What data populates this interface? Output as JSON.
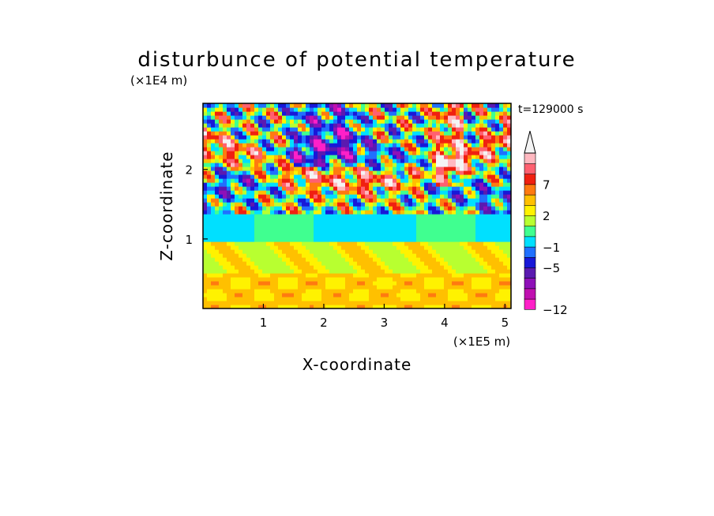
{
  "chart_data": {
    "type": "heatmap",
    "title": "disturbunce of potential temperature",
    "xlabel": "X-coordinate",
    "ylabel": "Z-coordinate",
    "x_unit": "(×1E5 m)",
    "y_unit": "(×1E4 m)",
    "time_label": "t=129000 s",
    "xlim": [
      0.0,
      5.1
    ],
    "ylim": [
      0.0,
      2.95
    ],
    "x_ticks": [
      1,
      2,
      3,
      4,
      5
    ],
    "y_ticks": [
      1,
      2
    ],
    "colorbar": {
      "levels": [
        -12,
        -11,
        -9,
        -7,
        -5,
        -3,
        -1,
        0,
        1,
        2,
        3,
        5,
        7,
        9,
        11
      ],
      "colors": [
        "#ff20c8",
        "#c010b0",
        "#8e10b8",
        "#5a1ab0",
        "#1818d8",
        "#2070ff",
        "#00e0ff",
        "#40ff90",
        "#b8ff30",
        "#fff200",
        "#ffc000",
        "#ff7a10",
        "#f02010",
        "#ff6070",
        "#ffb8c0",
        "#f4f4f4"
      ],
      "labels": [
        {
          "value": -12,
          "text": "-12"
        },
        {
          "value": -5,
          "text": "-5"
        },
        {
          "value": -1,
          "text": "-1"
        },
        {
          "value": 2,
          "text": "2"
        },
        {
          "value": 7,
          "text": "7"
        }
      ]
    },
    "field_description_bands": [
      {
        "z_range": [
          0.0,
          0.5
        ],
        "dominant": "yellow/orange (~1 to 3)"
      },
      {
        "z_range": [
          0.5,
          0.95
        ],
        "dominant": "green/yellow (~0 to 2)"
      },
      {
        "z_range": [
          0.95,
          1.4
        ],
        "dominant": "cyan/blue (~-1 to -3)"
      },
      {
        "z_range": [
          1.4,
          2.95
        ],
        "dominant": "mixed wave pattern, -9 to 11"
      }
    ]
  }
}
